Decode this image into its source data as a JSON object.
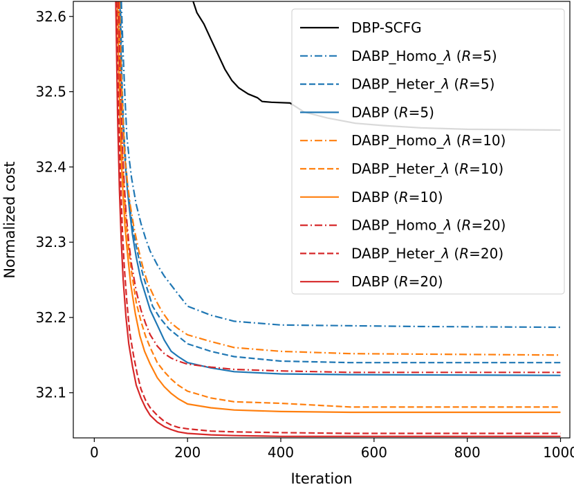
{
  "chart_data": {
    "type": "line",
    "xlabel": "Iteration",
    "ylabel": "Normalized cost",
    "xlim": [
      -45,
      1020
    ],
    "ylim": [
      32.04,
      32.62
    ],
    "xticks": [
      0,
      200,
      400,
      600,
      800,
      1000
    ],
    "yticks": [
      32.1,
      32.2,
      32.3,
      32.4,
      32.5,
      32.6
    ],
    "ytick_labels": [
      "32.1",
      "32.2",
      "32.3",
      "32.4",
      "32.5",
      "32.6"
    ],
    "grid": false,
    "legend_position": "top-right",
    "series": [
      {
        "id": "dbp-scfg",
        "name": "DBP-SCFG",
        "color": "#000000",
        "dash": "solid",
        "x": [
          212,
          220,
          235,
          250,
          265,
          280,
          295,
          310,
          330,
          350,
          360,
          380,
          420,
          450,
          500,
          560,
          620,
          700,
          800,
          1000
        ],
        "y": [
          32.62,
          32.605,
          32.59,
          32.57,
          32.55,
          32.53,
          32.515,
          32.505,
          32.497,
          32.492,
          32.487,
          32.486,
          32.485,
          32.473,
          32.465,
          32.458,
          32.455,
          32.452,
          32.45,
          32.449
        ]
      },
      {
        "id": "homo-r5",
        "name": "DABP_Homo_λ (R=5)",
        "name_base": "DABP_Homo_λ",
        "name_r": "5",
        "color": "#1f77b4",
        "dash": "dashdot",
        "x": [
          58,
          62,
          66,
          70,
          75,
          80,
          90,
          100,
          110,
          120,
          135,
          150,
          175,
          200,
          250,
          300,
          400,
          550,
          700,
          1000
        ],
        "y": [
          32.62,
          32.55,
          32.49,
          32.44,
          32.41,
          32.385,
          32.35,
          32.325,
          32.305,
          32.288,
          32.27,
          32.255,
          32.235,
          32.215,
          32.203,
          32.195,
          32.19,
          32.189,
          32.188,
          32.187
        ]
      },
      {
        "id": "heter-r5",
        "name": "DABP_Heter_λ (R=5)",
        "name_base": "DABP_Heter_λ",
        "name_r": "5",
        "color": "#1f77b4",
        "dash": "dash",
        "x": [
          56,
          60,
          64,
          68,
          72,
          78,
          85,
          95,
          105,
          115,
          125,
          140,
          160,
          180,
          200,
          250,
          300,
          400,
          550,
          1000
        ],
        "y": [
          32.62,
          32.5,
          32.44,
          32.4,
          32.37,
          32.34,
          32.31,
          32.28,
          32.255,
          32.235,
          32.215,
          32.2,
          32.185,
          32.175,
          32.165,
          32.155,
          32.148,
          32.142,
          32.14,
          32.14
        ]
      },
      {
        "id": "dabp-r5",
        "name": "DABP (R=5)",
        "name_base": "DABP",
        "name_r": "5",
        "color": "#1f77b4",
        "dash": "solid",
        "x": [
          55,
          59,
          63,
          67,
          71,
          76,
          82,
          90,
          100,
          110,
          120,
          135,
          150,
          165,
          180,
          200,
          250,
          300,
          400,
          550,
          1000
        ],
        "y": [
          32.62,
          32.5,
          32.44,
          32.4,
          32.37,
          32.34,
          32.31,
          32.28,
          32.25,
          32.23,
          32.21,
          32.19,
          32.17,
          32.155,
          32.148,
          32.14,
          32.133,
          32.128,
          32.125,
          32.124,
          32.123
        ]
      },
      {
        "id": "homo-r10",
        "name": "DABP_Homo_λ (R=10)",
        "name_base": "DABP_Homo_λ",
        "name_r": "10",
        "color": "#ff7f0e",
        "dash": "dashdot",
        "x": [
          54,
          58,
          62,
          66,
          71,
          77,
          85,
          95,
          105,
          115,
          130,
          145,
          160,
          180,
          200,
          250,
          300,
          400,
          550,
          1000
        ],
        "y": [
          32.62,
          32.52,
          32.46,
          32.41,
          32.38,
          32.35,
          32.32,
          32.29,
          32.265,
          32.245,
          32.225,
          32.208,
          32.195,
          32.185,
          32.177,
          32.168,
          32.16,
          32.155,
          32.152,
          32.15
        ]
      },
      {
        "id": "heter-r10",
        "name": "DABP_Heter_λ (R=10)",
        "name_base": "DABP_Heter_λ",
        "name_r": "10",
        "color": "#ff7f0e",
        "dash": "dash",
        "x": [
          52,
          56,
          60,
          64,
          68,
          74,
          80,
          90,
          100,
          110,
          120,
          135,
          150,
          165,
          180,
          200,
          250,
          300,
          400,
          550,
          1000
        ],
        "y": [
          32.62,
          32.5,
          32.42,
          32.37,
          32.33,
          32.29,
          32.26,
          32.22,
          32.195,
          32.175,
          32.16,
          32.14,
          32.128,
          32.118,
          32.11,
          32.102,
          32.093,
          32.088,
          32.086,
          32.081,
          32.081
        ]
      },
      {
        "id": "dabp-r10",
        "name": "DABP (R=10)",
        "name_base": "DABP",
        "name_r": "10",
        "color": "#ff7f0e",
        "dash": "solid",
        "x": [
          50,
          54,
          58,
          62,
          66,
          72,
          78,
          88,
          98,
          108,
          120,
          135,
          150,
          165,
          180,
          200,
          250,
          300,
          400,
          550,
          1000
        ],
        "y": [
          32.62,
          32.49,
          32.41,
          32.36,
          32.32,
          32.28,
          32.245,
          32.205,
          32.175,
          32.155,
          32.138,
          32.12,
          32.108,
          32.099,
          32.092,
          32.085,
          32.08,
          32.077,
          32.075,
          32.074,
          32.074
        ]
      },
      {
        "id": "homo-r20",
        "name": "DABP_Homo_λ (R=20)",
        "name_base": "DABP_Homo_λ",
        "name_r": "20",
        "color": "#d62728",
        "dash": "dashdot",
        "x": [
          52,
          56,
          60,
          64,
          68,
          74,
          80,
          90,
          100,
          110,
          120,
          135,
          150,
          165,
          180,
          200,
          250,
          300,
          400,
          550,
          1000
        ],
        "y": [
          32.62,
          32.5,
          32.43,
          32.38,
          32.34,
          32.3,
          32.27,
          32.235,
          32.21,
          32.192,
          32.177,
          32.162,
          32.152,
          32.146,
          32.142,
          32.138,
          32.134,
          32.131,
          32.129,
          32.127,
          32.127
        ]
      },
      {
        "id": "heter-r20",
        "name": "DABP_Heter_λ (R=20)",
        "name_base": "DABP_Heter_λ",
        "name_r": "20",
        "color": "#d62728",
        "dash": "dash",
        "x": [
          48,
          52,
          56,
          60,
          64,
          70,
          76,
          84,
          92,
          100,
          110,
          120,
          135,
          150,
          165,
          180,
          200,
          250,
          300,
          400,
          550,
          1000
        ],
        "y": [
          32.62,
          32.48,
          32.39,
          32.32,
          32.27,
          32.22,
          32.18,
          32.15,
          32.125,
          32.105,
          32.09,
          32.08,
          32.07,
          32.062,
          32.057,
          32.054,
          32.052,
          32.049,
          32.048,
          32.047,
          32.046,
          32.046
        ]
      },
      {
        "id": "dabp-r20",
        "name": "DABP (R=20)",
        "name_base": "DABP",
        "name_r": "20",
        "color": "#d62728",
        "dash": "solid",
        "x": [
          46,
          50,
          54,
          58,
          62,
          68,
          74,
          82,
          90,
          100,
          110,
          120,
          135,
          150,
          165,
          180,
          200,
          250,
          300,
          400,
          550,
          1000
        ],
        "y": [
          32.62,
          32.47,
          32.37,
          32.3,
          32.25,
          32.2,
          32.165,
          32.135,
          32.11,
          32.093,
          32.08,
          32.07,
          32.061,
          32.055,
          32.051,
          32.048,
          32.046,
          32.044,
          32.043,
          32.042,
          32.042,
          32.042
        ]
      }
    ]
  }
}
